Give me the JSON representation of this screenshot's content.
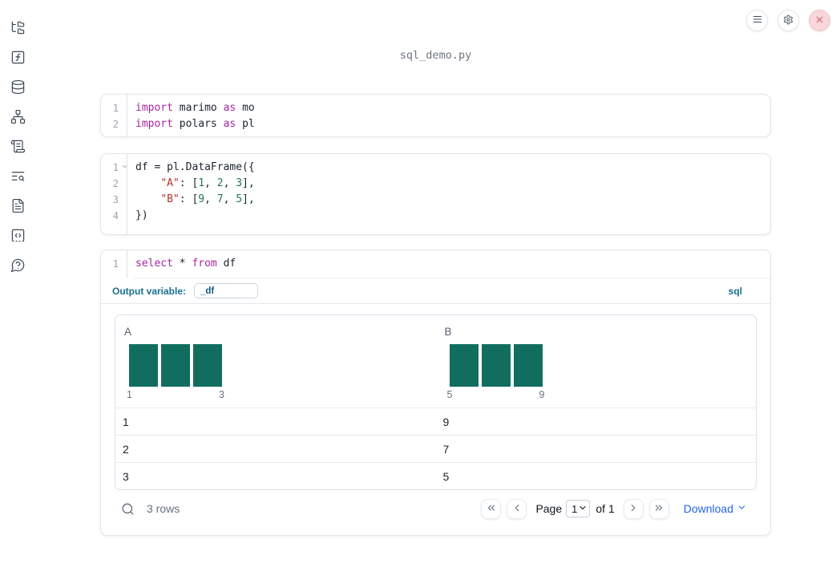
{
  "window": {
    "title": "sql_demo.py"
  },
  "sidebar": {
    "items": [
      {
        "name": "file-explorer",
        "icon": "folder-tree"
      },
      {
        "name": "variables",
        "icon": "function-square"
      },
      {
        "name": "data-sources",
        "icon": "database"
      },
      {
        "name": "dependencies",
        "icon": "network"
      },
      {
        "name": "scratchpad",
        "icon": "scroll-text"
      },
      {
        "name": "logs",
        "icon": "text-search"
      },
      {
        "name": "documentation",
        "icon": "file-text"
      },
      {
        "name": "snippets",
        "icon": "code-box"
      },
      {
        "name": "help",
        "icon": "help-circle"
      }
    ]
  },
  "toolbar": {
    "buttons": [
      {
        "name": "menu",
        "icon": "menu"
      },
      {
        "name": "settings",
        "icon": "gear"
      },
      {
        "name": "close",
        "icon": "x"
      }
    ]
  },
  "cells": [
    {
      "type": "python",
      "lines": [
        {
          "n": "1",
          "tokens": [
            [
              "kw",
              "import"
            ],
            [
              "pl",
              " marimo "
            ],
            [
              "kw",
              "as"
            ],
            [
              "pl",
              " mo"
            ]
          ]
        },
        {
          "n": "2",
          "tokens": [
            [
              "kw",
              "import"
            ],
            [
              "pl",
              " polars "
            ],
            [
              "kw",
              "as"
            ],
            [
              "pl",
              " pl"
            ]
          ]
        }
      ]
    },
    {
      "type": "python",
      "lines": [
        {
          "n": "1",
          "fold": true,
          "tokens": [
            [
              "pl",
              "df = pl.DataFrame({"
            ]
          ]
        },
        {
          "n": "2",
          "tokens": [
            [
              "pl",
              "    "
            ],
            [
              "str",
              "\"A\""
            ],
            [
              "pl",
              ": ["
            ],
            [
              "num",
              "1"
            ],
            [
              "pl",
              ", "
            ],
            [
              "num",
              "2"
            ],
            [
              "pl",
              ", "
            ],
            [
              "num",
              "3"
            ],
            [
              "pl",
              "],"
            ]
          ]
        },
        {
          "n": "3",
          "tokens": [
            [
              "pl",
              "    "
            ],
            [
              "str",
              "\"B\""
            ],
            [
              "pl",
              ": ["
            ],
            [
              "num",
              "9"
            ],
            [
              "pl",
              ", "
            ],
            [
              "num",
              "7"
            ],
            [
              "pl",
              ", "
            ],
            [
              "num",
              "5"
            ],
            [
              "pl",
              "],"
            ]
          ]
        },
        {
          "n": "4",
          "tokens": [
            [
              "pl",
              "})"
            ]
          ]
        }
      ]
    },
    {
      "type": "sql",
      "lines": [
        {
          "n": "1",
          "tokens": [
            [
              "kw",
              "select"
            ],
            [
              "pl",
              " * "
            ],
            [
              "kw",
              "from"
            ],
            [
              "pl",
              " df"
            ]
          ]
        }
      ],
      "output_variable_label": "Output variable:",
      "output_variable_value": "_df",
      "language_badge": "sql"
    }
  ],
  "table": {
    "columns": [
      {
        "label": "A",
        "histogram": {
          "type": "bar",
          "values": [
            1,
            1,
            1
          ],
          "min_label": "1",
          "max_label": "3"
        }
      },
      {
        "label": "B",
        "histogram": {
          "type": "bar",
          "values": [
            1,
            1,
            1
          ],
          "min_label": "5",
          "max_label": "9"
        }
      }
    ],
    "rows": [
      [
        "1",
        "9"
      ],
      [
        "2",
        "7"
      ],
      [
        "3",
        "5"
      ]
    ],
    "footer": {
      "rows_label": "3 rows",
      "page_label": "Page",
      "page_value": "1",
      "of_label": "of 1",
      "download_label": "Download"
    }
  },
  "colors": {
    "histogram_bar": "#116e5e",
    "accent_blue": "#2563eb",
    "sql_label_teal": "#19708f",
    "keyword": "#a626a4",
    "string": "#b0352c",
    "number": "#1e7a50",
    "close_button_bg": "#f8d6d9",
    "close_button_icon": "#c65b63"
  }
}
